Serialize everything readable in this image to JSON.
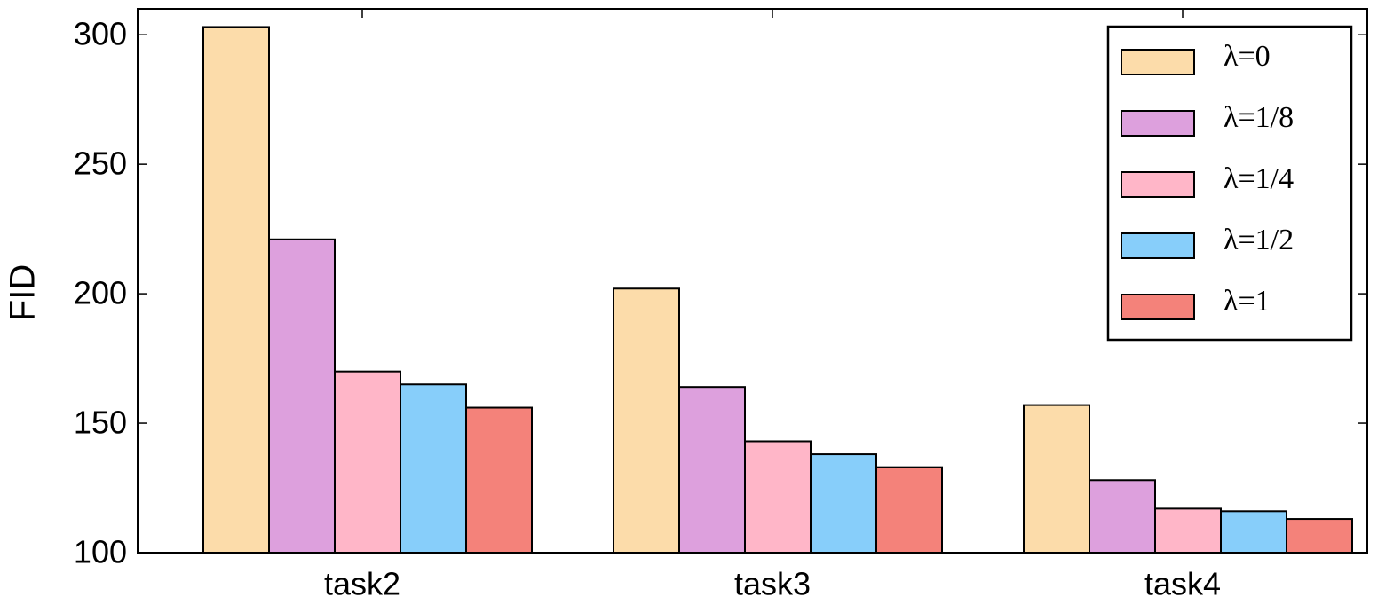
{
  "chart_data": {
    "type": "bar",
    "y_label": "FID",
    "categories": [
      "task2",
      "task3",
      "task4"
    ],
    "series": [
      {
        "name": "λ=0",
        "color": "#fcdcaa",
        "values": [
          303,
          202,
          157
        ]
      },
      {
        "name": "λ=1/8",
        "color": "#dda0dd",
        "values": [
          221,
          164,
          128
        ]
      },
      {
        "name": "λ=1/4",
        "color": "#ffb6c8",
        "values": [
          170,
          143,
          117
        ]
      },
      {
        "name": "λ=1/2",
        "color": "#87cefa",
        "values": [
          165,
          138,
          116
        ]
      },
      {
        "name": "λ=1",
        "color": "#f4827a",
        "values": [
          156,
          133,
          113
        ]
      }
    ],
    "ylim": [
      100,
      310
    ],
    "yticks": [
      100,
      150,
      200,
      250,
      300
    ],
    "legend": "upper right"
  }
}
